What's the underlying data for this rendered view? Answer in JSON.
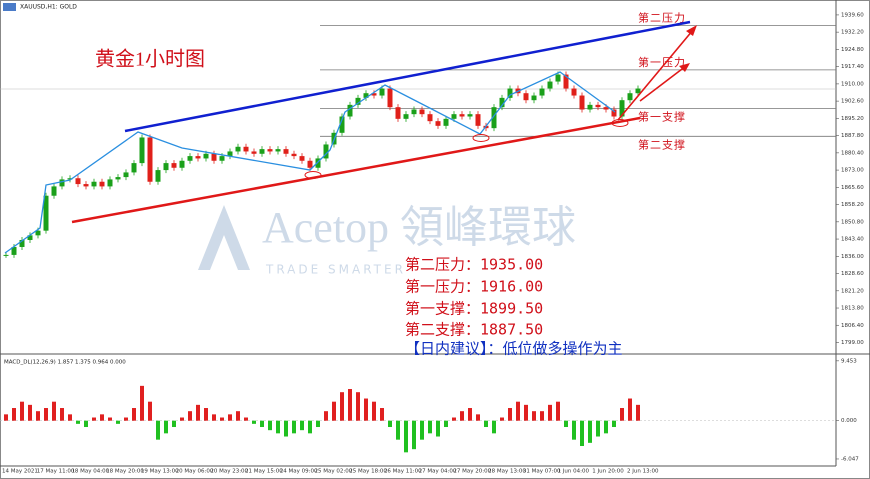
{
  "chart_data": [
    {
      "type": "candlestick",
      "title": "XAUUSD,H1: GOLD",
      "annotation": "黄金1小时图",
      "values": [
        1836.6,
        1840,
        1843,
        1845,
        1847,
        1862,
        1866,
        1869,
        1869.5,
        1867,
        1866,
        1868,
        1866,
        1869,
        1870,
        1872,
        1876,
        1887,
        1868,
        1873,
        1876,
        1874,
        1877,
        1879,
        1878,
        1880,
        1877,
        1879,
        1881,
        1883,
        1881,
        1880,
        1882,
        1881,
        1882,
        1880,
        1879,
        1877,
        1874,
        1878,
        1884,
        1889,
        1896,
        1901,
        1904,
        1906,
        1905,
        1908,
        1900,
        1895,
        1897,
        1899,
        1897,
        1894,
        1892,
        1895,
        1897,
        1896,
        1897,
        1892,
        1891,
        1900,
        1904,
        1908,
        1906,
        1903,
        1905,
        1908,
        1911,
        1914,
        1908,
        1905,
        1899,
        1901,
        1900,
        1899,
        1896,
        1903,
        1906,
        1908
      ],
      "up_color": "#1aa01a",
      "down_color": "#e0201a",
      "ylim": [
        1794.5,
        1946
      ],
      "yticks": [
        {
          "value": 1939.6,
          "label": "1939.60"
        },
        {
          "value": 1932.2,
          "label": "1932.20"
        },
        {
          "value": 1924.8,
          "label": "1924.80"
        },
        {
          "value": 1917.4,
          "label": "1917.40"
        },
        {
          "value": 1910,
          "label": "1910.00"
        },
        {
          "value": 1902.6,
          "label": "1902.60"
        },
        {
          "value": 1895.2,
          "label": "1895.20"
        },
        {
          "value": 1887.8,
          "label": "1887.80"
        },
        {
          "value": 1880.4,
          "label": "1880.40"
        },
        {
          "value": 1873,
          "label": "1873.00"
        },
        {
          "value": 1865.6,
          "label": "1865.60"
        },
        {
          "value": 1858.2,
          "label": "1858.20"
        },
        {
          "value": 1850.8,
          "label": "1850.80"
        },
        {
          "value": 1843.4,
          "label": "1843.40"
        },
        {
          "value": 1836,
          "label": "1836.00"
        },
        {
          "value": 1828.6,
          "label": "1828.60"
        },
        {
          "value": 1821.2,
          "label": "1821.20"
        },
        {
          "value": 1813.8,
          "label": "1813.80"
        },
        {
          "value": 1806.4,
          "label": "1806.40"
        },
        {
          "value": 1799,
          "label": "1799.00"
        }
      ],
      "levels": [
        {
          "value": 1935,
          "label": "第二压力"
        },
        {
          "value": 1916,
          "label": "第一压力"
        },
        {
          "value": 1899.5,
          "label": "第一支撑"
        },
        {
          "value": 1887.5,
          "label": "第二支撑"
        }
      ],
      "notes": [
        "第二压力：1935.00",
        "第一压力：1916.00",
        "第一支撑：1899.50",
        "第二支撑：1887.50"
      ],
      "advice": "【日内建议】：低位做多操作为主",
      "watermark": {
        "brand": "Acetop 領峰環球",
        "slogan": "TRADE SMARTER"
      }
    },
    {
      "type": "bar",
      "title": "MACD_DL(12,26,9) 1.857 1.375 0.964 0.000",
      "values": [
        1,
        2,
        3,
        2.5,
        1.5,
        2,
        3,
        2,
        1,
        -0.5,
        -1,
        0.5,
        1,
        0.5,
        -0.5,
        0.5,
        2,
        5.5,
        3,
        -3,
        -2,
        -1,
        0.5,
        1.5,
        2.5,
        2,
        1,
        0.5,
        1,
        1.5,
        0.5,
        -0.5,
        -1,
        -1.5,
        -2,
        -2.5,
        -2,
        -1.5,
        -2,
        -1,
        1.5,
        3,
        4.5,
        5,
        4.5,
        3.5,
        3,
        2,
        -1,
        -3,
        -5,
        -4.5,
        -3,
        -2,
        -2.5,
        -1,
        0.5,
        1.5,
        2,
        1,
        -1,
        -2,
        0.5,
        2,
        3,
        2.5,
        1.5,
        1.5,
        2.5,
        3,
        -1,
        -3,
        -4,
        -3.5,
        -2.5,
        -2,
        -1,
        2,
        3.5,
        2.5
      ],
      "up_color": "#e02020",
      "down_color": "#20c020",
      "ylim": [
        -7,
        9.9
      ],
      "yticks": [
        {
          "value": 9.453,
          "label": "9.453"
        },
        {
          "value": 0,
          "label": "0.000"
        },
        {
          "value": -6.047,
          "label": "-6.047"
        }
      ],
      "xtick_labels": [
        "14 May 2021",
        "17 May 11:00",
        "18 May 04:00",
        "18 May 20:00",
        "19 May 13:00",
        "20 May 06:00",
        "20 May 23:00",
        "21 May 15:00",
        "24 May 09:00",
        "25 May 02:00",
        "25 May 18:00",
        "26 May 11:00",
        "27 May 04:00",
        "27 May 20:00",
        "28 May 13:00",
        "31 May 07:00",
        "1 Jun 04:00",
        "1 Jun 20:00",
        "2 Jun 13:00"
      ]
    }
  ]
}
